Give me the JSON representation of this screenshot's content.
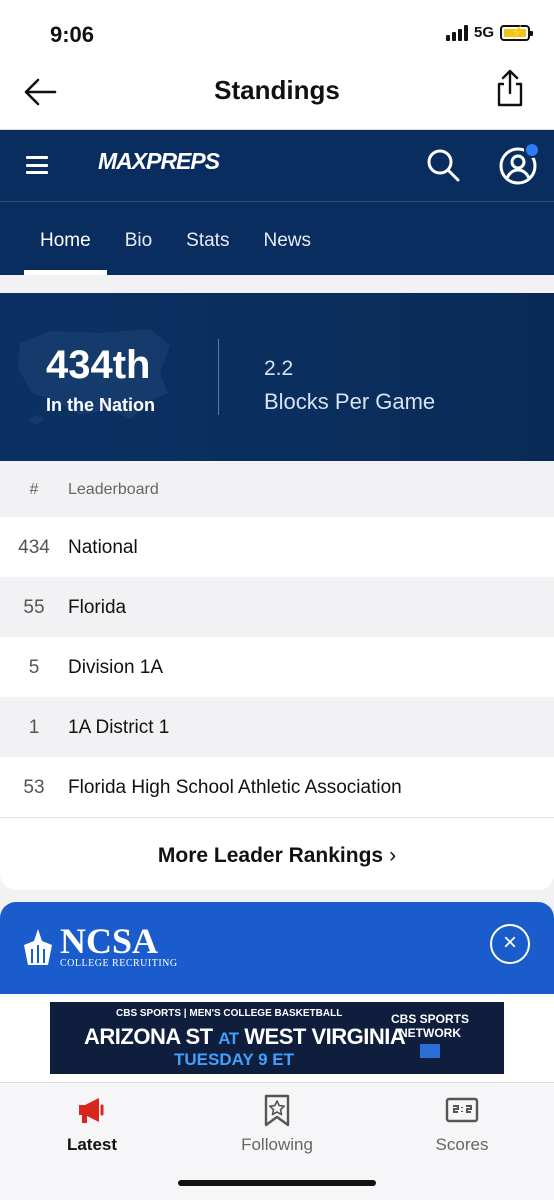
{
  "status": {
    "time": "9:06",
    "network": "5G"
  },
  "appbar": {
    "title": "Standings"
  },
  "maxpreps": {
    "logo_text": "MAXPREPS",
    "tabs": [
      {
        "label": "Home",
        "active": true
      },
      {
        "label": "Bio"
      },
      {
        "label": "Stats"
      },
      {
        "label": "News"
      }
    ]
  },
  "hero": {
    "rank": "434th",
    "rank_label": "In the Nation",
    "stat_value": "2.2",
    "stat_label": "Blocks Per Game"
  },
  "leaderboard": {
    "headers": [
      "#",
      "Leaderboard"
    ],
    "rows": [
      {
        "rank": "434",
        "name": "National"
      },
      {
        "rank": "55",
        "name": "Florida"
      },
      {
        "rank": "5",
        "name": "Division 1A"
      },
      {
        "rank": "1",
        "name": "1A District 1"
      },
      {
        "rank": "53",
        "name": "Florida High School Athletic Association"
      }
    ],
    "more_label": "More Leader Rankings"
  },
  "ad": {
    "brand": "NCSA",
    "brand_sub": "COLLEGE RECRUITING",
    "banner_top": "CBS SPORTS | MEN'S COLLEGE BASKETBALL",
    "team1": "ARIZONA ST",
    "at": "AT",
    "team2": "WEST VIRGINIA",
    "date": "TUESDAY 9 ET",
    "network": "CBS SPORTS NETWORK"
  },
  "tabbar": {
    "items": [
      {
        "label": "Latest",
        "icon": "megaphone-icon",
        "active": true
      },
      {
        "label": "Following",
        "icon": "bookmark-star-icon"
      },
      {
        "label": "Scores",
        "icon": "scoreboard-icon"
      }
    ]
  },
  "colors": {
    "navy": "#0a2d5f",
    "ad_blue": "#1a5ccc",
    "latest_red": "#d9261c",
    "notification_blue": "#2f7bf5"
  }
}
